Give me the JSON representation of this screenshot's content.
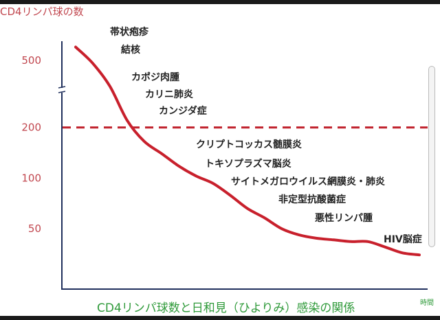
{
  "chart_data": {
    "type": "line",
    "ylabel": "CD4リンパ球の数",
    "xlabel": "CD4リンパ球数と日和見（ひよりみ）感染の関係",
    "x_unit": "時間",
    "y_scale": "log",
    "ylim": [
      28,
      650
    ],
    "yticks": [
      500,
      200,
      100,
      50
    ],
    "threshold": {
      "value": 200,
      "style": "dashed",
      "color": "#c0222d"
    },
    "line_color": "#c8202c",
    "x": [
      0,
      5,
      10,
      15,
      20,
      25,
      30,
      35,
      40,
      45,
      50,
      55,
      60,
      65,
      70,
      75,
      80,
      85,
      90,
      95,
      100
    ],
    "y": [
      600,
      480,
      350,
      220,
      165,
      140,
      118,
      103,
      93,
      79,
      66,
      58,
      50,
      46,
      44,
      43,
      42,
      42,
      39,
      36,
      35
    ],
    "annotations": [
      "帯状疱疹",
      "結核",
      "カポジ肉腫",
      "カリニ肺炎",
      "カンジダ症",
      "クリプトコッカス髄膜炎",
      "トキソプラズマ脳炎",
      "サイトメガロウイルス網膜炎・肺炎",
      "非定型抗酸菌症",
      "悪性リンパ腫",
      "HIV脳症"
    ]
  }
}
